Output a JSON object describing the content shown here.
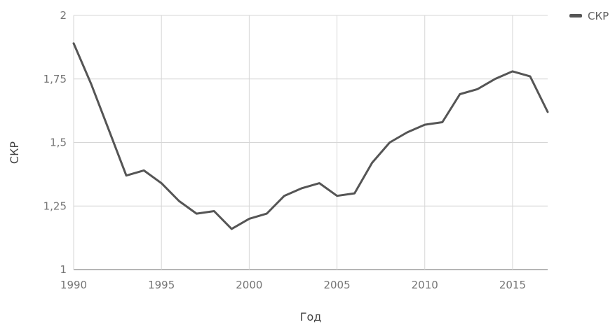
{
  "chart_data": {
    "type": "line",
    "xlabel": "Год",
    "ylabel": "СКР",
    "xlim": [
      1990,
      2017
    ],
    "ylim": [
      1,
      2
    ],
    "xticks": [
      "1990",
      "1995",
      "2000",
      "2005",
      "2010",
      "2015"
    ],
    "yticks": [
      "1",
      "1,25",
      "1,5",
      "1,75",
      "2"
    ],
    "grid": true,
    "legend_position": "top-right",
    "series": [
      {
        "name": "СКР",
        "color": "#555555",
        "x": [
          1990,
          1991,
          1992,
          1993,
          1994,
          1995,
          1996,
          1997,
          1998,
          1999,
          2000,
          2001,
          2002,
          2003,
          2004,
          2005,
          2006,
          2007,
          2008,
          2009,
          2010,
          2011,
          2012,
          2013,
          2014,
          2015,
          2016,
          2017
        ],
        "y": [
          1.89,
          1.73,
          1.55,
          1.37,
          1.39,
          1.34,
          1.27,
          1.22,
          1.23,
          1.16,
          1.2,
          1.22,
          1.29,
          1.32,
          1.34,
          1.29,
          1.3,
          1.42,
          1.5,
          1.54,
          1.57,
          1.58,
          1.69,
          1.71,
          1.75,
          1.78,
          1.76,
          1.62
        ]
      }
    ]
  }
}
